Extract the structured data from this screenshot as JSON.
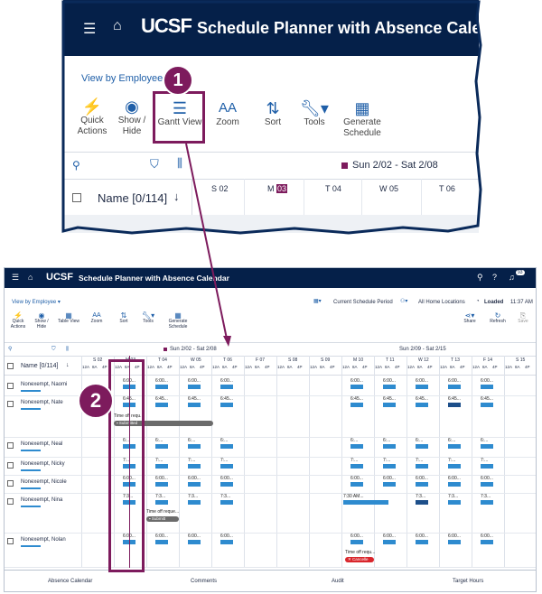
{
  "app_title": "Schedule Planner with Absence Calendar",
  "logo": "UCSF",
  "view_by": "View by Employee",
  "toolbar": {
    "quick_actions": "Quick Actions",
    "show_hide": "Show / Hide",
    "table_view": "Table View",
    "gantt_view": "Gantt View",
    "zoom": "Zoom",
    "sort": "Sort",
    "tools": "Tools",
    "generate_schedule": "Generate Schedule",
    "share": "Share",
    "refresh": "Refresh",
    "save": "Save"
  },
  "zoom_callout": {
    "week_range": "Sun 2/02 - Sat 2/08",
    "name_header": "Name [0/114]",
    "days": [
      "S 02",
      "M 03",
      "T 04",
      "W 05",
      "T 06"
    ]
  },
  "status": {
    "current_schedule_period": "Current Schedule Period",
    "all_home_locations": "All Home Locations",
    "loaded": "Loaded",
    "time": "11:37 AM",
    "notification_count": "93"
  },
  "grid": {
    "name_header": "Name [0/114]",
    "week1": "Sun 2/02 - Sat 2/08",
    "week2": "Sun 2/09 - Sat 2/15",
    "days": [
      "S 02",
      "M 03",
      "T 04",
      "W 05",
      "T 06",
      "F 07",
      "S 08",
      "S 09",
      "M 10",
      "T 11",
      "W 12",
      "T 13",
      "F 14",
      "S 15"
    ],
    "hour_labels": [
      "12A",
      "8A",
      "4P"
    ],
    "employees": [
      "Nonexempt, Naomi",
      "Nonexempt, Nate",
      "Nonexempt, Neal",
      "Nonexempt, Nicky",
      "Nonexempt, Nicole",
      "Nonexempt, Nina",
      "Nonexempt, Nolan"
    ],
    "shift_full": "6:00...",
    "shift_med": "6:45...",
    "shift_short": "6:...",
    "shift_min": "7:...",
    "shift_730": "7:30 AM...",
    "shift_73": "7:3...",
    "time_off_requ": "Time off requ...",
    "time_off_reque": "Time off reque...",
    "time_off_requ2": "Time off requ...",
    "submitted": "Submitted",
    "submitt": "Submitt",
    "cancelled": "Cancelle"
  },
  "bottom_tabs": [
    "Absence Calendar",
    "Comments",
    "Audit",
    "Target Hours"
  ],
  "callouts": [
    "1",
    "2"
  ],
  "colors": {
    "navy": "#052049",
    "accent": "#1f5fa8",
    "highlight": "#7d1b5d",
    "bar": "#2e8bcf",
    "submitted_pill": "#6b6b6b",
    "cancelled_pill": "#d9262c"
  }
}
